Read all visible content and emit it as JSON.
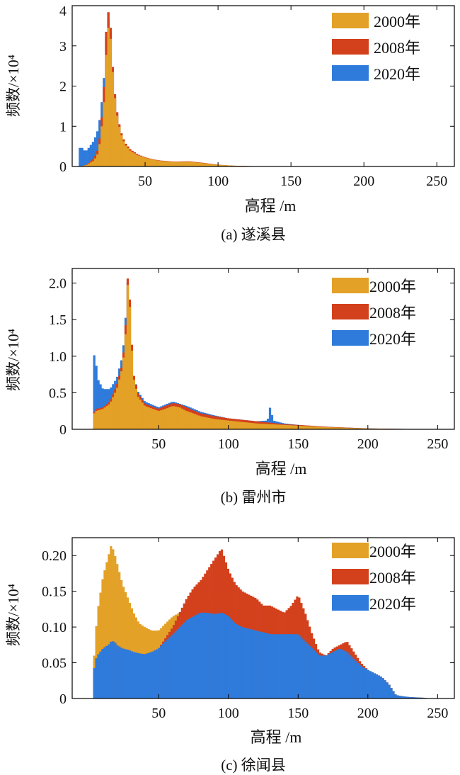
{
  "colors": {
    "c2000": "#E3A127",
    "c2008": "#D3401C",
    "c2020": "#2F7BDB"
  },
  "chart_data": [
    {
      "type": "bar",
      "caption": "(a) 遂溪县",
      "xlabel": "高程 /m",
      "ylabel": "频数/×10⁴",
      "xlim": [
        0,
        262
      ],
      "ylim": [
        0,
        4
      ],
      "xticks": [
        50,
        100,
        150,
        200,
        250
      ],
      "yticks": [
        0,
        1,
        2,
        3,
        4
      ],
      "ytick_labels": [
        "0",
        "1",
        "2",
        "3",
        "4"
      ],
      "legend": "top-right",
      "series": [
        {
          "name": "2000年",
          "color": "#E3A127",
          "x": [
            5,
            10,
            15,
            18,
            20,
            22,
            23,
            24,
            25,
            26,
            27,
            28,
            30,
            33,
            36,
            40,
            45,
            50,
            55,
            60,
            70,
            80,
            85,
            90,
            100,
            110,
            120,
            140,
            160,
            200,
            260
          ],
          "values": [
            0,
            0.04,
            0.15,
            0.35,
            0.9,
            1.7,
            2.6,
            3.3,
            3.5,
            3.3,
            2.8,
            2.2,
            1.4,
            0.85,
            0.55,
            0.38,
            0.28,
            0.22,
            0.17,
            0.14,
            0.11,
            0.12,
            0.1,
            0.08,
            0.04,
            0.02,
            0.01,
            0.005,
            0.002,
            0.001,
            0
          ]
        },
        {
          "name": "2008年",
          "color": "#D3401C",
          "x": [
            5,
            10,
            15,
            18,
            20,
            22,
            23,
            24,
            25,
            26,
            27,
            28,
            30,
            33,
            36,
            40,
            45,
            50,
            55,
            60,
            70,
            80,
            85,
            90,
            100,
            110,
            120,
            140,
            160,
            200,
            260
          ],
          "values": [
            0,
            0.05,
            0.2,
            0.45,
            1.1,
            2.1,
            3.2,
            3.8,
            3.85,
            3.6,
            3.0,
            2.3,
            1.5,
            0.9,
            0.6,
            0.42,
            0.3,
            0.23,
            0.18,
            0.15,
            0.12,
            0.13,
            0.11,
            0.09,
            0.045,
            0.02,
            0.01,
            0.005,
            0.002,
            0.001,
            0
          ]
        },
        {
          "name": "2020年",
          "color": "#2F7BDB",
          "x": [
            4,
            5,
            6,
            8,
            10,
            15,
            18,
            20,
            22,
            23,
            24,
            25,
            26,
            27,
            28,
            30,
            33,
            36,
            40,
            45,
            50,
            55,
            60,
            70,
            80,
            85,
            90,
            100,
            110,
            120,
            140,
            160,
            200,
            260
          ],
          "values": [
            0,
            0.45,
            0.5,
            0.4,
            0.4,
            0.65,
            0.95,
            1.5,
            2.3,
            3.1,
            3.6,
            3.7,
            3.5,
            2.9,
            2.2,
            1.45,
            0.85,
            0.55,
            0.38,
            0.28,
            0.21,
            0.17,
            0.14,
            0.11,
            0.12,
            0.1,
            0.08,
            0.04,
            0.02,
            0.01,
            0.005,
            0.002,
            0.001,
            0
          ]
        }
      ]
    },
    {
      "type": "bar",
      "caption": "(b) 雷州市",
      "xlabel": "高程 /m",
      "ylabel": "频数/×10⁴",
      "xlim": [
        -12,
        262
      ],
      "ylim": [
        0,
        2.2
      ],
      "xticks": [
        50,
        100,
        150,
        200,
        250
      ],
      "yticks": [
        0,
        0.5,
        1.0,
        1.5,
        2.0
      ],
      "ytick_labels": [
        "0",
        "0.5",
        "1.0",
        "1.5",
        "2.0"
      ],
      "legend": "top-right",
      "series": [
        {
          "name": "2000年",
          "color": "#E3A127",
          "x": [
            2,
            3,
            5,
            10,
            15,
            20,
            24,
            26,
            27,
            28,
            29,
            30,
            32,
            35,
            40,
            50,
            55,
            60,
            65,
            70,
            80,
            90,
            100,
            110,
            120,
            130,
            140,
            150,
            170,
            200,
            230,
            262
          ],
          "values": [
            0,
            0.2,
            0.25,
            0.28,
            0.35,
            0.55,
            0.85,
            1.2,
            1.6,
            2.1,
            1.8,
            1.3,
            0.7,
            0.45,
            0.32,
            0.25,
            0.28,
            0.32,
            0.3,
            0.25,
            0.18,
            0.14,
            0.12,
            0.1,
            0.08,
            0.07,
            0.06,
            0.05,
            0.03,
            0.01,
            0.003,
            0
          ]
        },
        {
          "name": "2008年",
          "color": "#D3401C",
          "x": [
            2,
            3,
            5,
            10,
            15,
            20,
            24,
            26,
            27,
            28,
            29,
            30,
            32,
            35,
            40,
            50,
            55,
            60,
            65,
            70,
            80,
            90,
            100,
            110,
            120,
            130,
            140,
            150,
            170,
            200,
            230,
            262
          ],
          "values": [
            0,
            0.22,
            0.28,
            0.3,
            0.38,
            0.6,
            0.9,
            1.3,
            1.8,
            2.15,
            1.9,
            1.4,
            0.75,
            0.5,
            0.35,
            0.28,
            0.32,
            0.36,
            0.34,
            0.3,
            0.22,
            0.18,
            0.15,
            0.13,
            0.11,
            0.09,
            0.07,
            0.06,
            0.035,
            0.012,
            0.004,
            0
          ]
        },
        {
          "name": "2020年",
          "color": "#2F7BDB",
          "x": [
            2,
            3,
            4,
            6,
            10,
            15,
            20,
            24,
            26,
            27,
            28,
            29,
            30,
            32,
            35,
            40,
            50,
            55,
            60,
            65,
            70,
            80,
            90,
            100,
            110,
            120,
            128,
            130,
            132,
            140,
            150,
            170,
            200,
            230,
            262
          ],
          "values": [
            0,
            0.6,
            1.15,
            0.7,
            0.55,
            0.55,
            0.7,
            1.0,
            1.4,
            1.9,
            2.05,
            1.85,
            1.35,
            0.75,
            0.52,
            0.38,
            0.3,
            0.34,
            0.38,
            0.35,
            0.32,
            0.24,
            0.19,
            0.15,
            0.13,
            0.11,
            0.12,
            0.32,
            0.12,
            0.08,
            0.06,
            0.035,
            0.012,
            0.004,
            0
          ]
        }
      ]
    },
    {
      "type": "bar",
      "caption": "(c) 徐闻县",
      "xlabel": "高程 /m",
      "ylabel": "频数/×10⁴",
      "xlim": [
        -12,
        262
      ],
      "ylim": [
        0,
        0.225
      ],
      "xticks": [
        50,
        100,
        150,
        200,
        250
      ],
      "yticks": [
        0,
        0.05,
        0.1,
        0.15,
        0.2
      ],
      "ytick_labels": [
        "0",
        "0.05",
        "0.10",
        "0.15",
        "0.20"
      ],
      "legend": "top-right",
      "series": [
        {
          "name": "2000年",
          "color": "#E3A127",
          "x": [
            2,
            3,
            4,
            6,
            10,
            14,
            16,
            18,
            20,
            24,
            28,
            32,
            36,
            40,
            45,
            50,
            55,
            60,
            65,
            70,
            75,
            80,
            85,
            90,
            95,
            100,
            105,
            110,
            120,
            130,
            140,
            150,
            160,
            165,
            170,
            175,
            180,
            185,
            190,
            195,
            200,
            205,
            210,
            215,
            220,
            225,
            230,
            240,
            245
          ],
          "values": [
            0,
            0.03,
            0.07,
            0.12,
            0.17,
            0.2,
            0.215,
            0.205,
            0.19,
            0.16,
            0.14,
            0.12,
            0.105,
            0.1,
            0.095,
            0.095,
            0.105,
            0.115,
            0.12,
            0.13,
            0.135,
            0.135,
            0.14,
            0.15,
            0.16,
            0.13,
            0.12,
            0.115,
            0.1,
            0.09,
            0.085,
            0.08,
            0.07,
            0.06,
            0.06,
            0.065,
            0.07,
            0.065,
            0.055,
            0.045,
            0.04,
            0.035,
            0.03,
            0.02,
            0.005,
            0.003,
            0.002,
            0.001,
            0
          ]
        },
        {
          "name": "2008年",
          "color": "#D3401C",
          "x": [
            2,
            3,
            4,
            6,
            10,
            14,
            16,
            18,
            20,
            24,
            28,
            32,
            36,
            40,
            45,
            50,
            55,
            60,
            65,
            70,
            75,
            80,
            85,
            90,
            95,
            100,
            105,
            110,
            115,
            120,
            125,
            130,
            135,
            140,
            145,
            150,
            155,
            160,
            165,
            170,
            175,
            180,
            185,
            190,
            195,
            200,
            205,
            210,
            215,
            220,
            225,
            230,
            240,
            245
          ],
          "values": [
            0,
            0.02,
            0.05,
            0.06,
            0.07,
            0.075,
            0.08,
            0.08,
            0.075,
            0.07,
            0.068,
            0.065,
            0.063,
            0.062,
            0.065,
            0.07,
            0.085,
            0.1,
            0.12,
            0.14,
            0.155,
            0.165,
            0.18,
            0.195,
            0.21,
            0.18,
            0.16,
            0.15,
            0.145,
            0.14,
            0.13,
            0.13,
            0.125,
            0.12,
            0.13,
            0.145,
            0.12,
            0.09,
            0.065,
            0.06,
            0.07,
            0.075,
            0.08,
            0.065,
            0.05,
            0.04,
            0.035,
            0.03,
            0.02,
            0.005,
            0.003,
            0.002,
            0.001,
            0
          ]
        },
        {
          "name": "2020年",
          "color": "#2F7BDB",
          "x": [
            2,
            3,
            4,
            6,
            10,
            14,
            16,
            18,
            20,
            24,
            28,
            32,
            36,
            40,
            45,
            50,
            55,
            60,
            65,
            70,
            75,
            80,
            85,
            90,
            95,
            100,
            105,
            110,
            120,
            130,
            140,
            150,
            160,
            165,
            170,
            175,
            180,
            185,
            190,
            195,
            200,
            205,
            210,
            215,
            220,
            225,
            230,
            240,
            245
          ],
          "values": [
            0,
            0.02,
            0.05,
            0.06,
            0.07,
            0.075,
            0.08,
            0.08,
            0.075,
            0.07,
            0.068,
            0.065,
            0.063,
            0.062,
            0.065,
            0.07,
            0.08,
            0.09,
            0.1,
            0.11,
            0.115,
            0.12,
            0.12,
            0.118,
            0.12,
            0.115,
            0.105,
            0.1,
            0.095,
            0.09,
            0.09,
            0.09,
            0.07,
            0.06,
            0.06,
            0.065,
            0.07,
            0.065,
            0.055,
            0.045,
            0.04,
            0.035,
            0.03,
            0.02,
            0.005,
            0.003,
            0.002,
            0.001,
            0
          ]
        }
      ]
    }
  ]
}
